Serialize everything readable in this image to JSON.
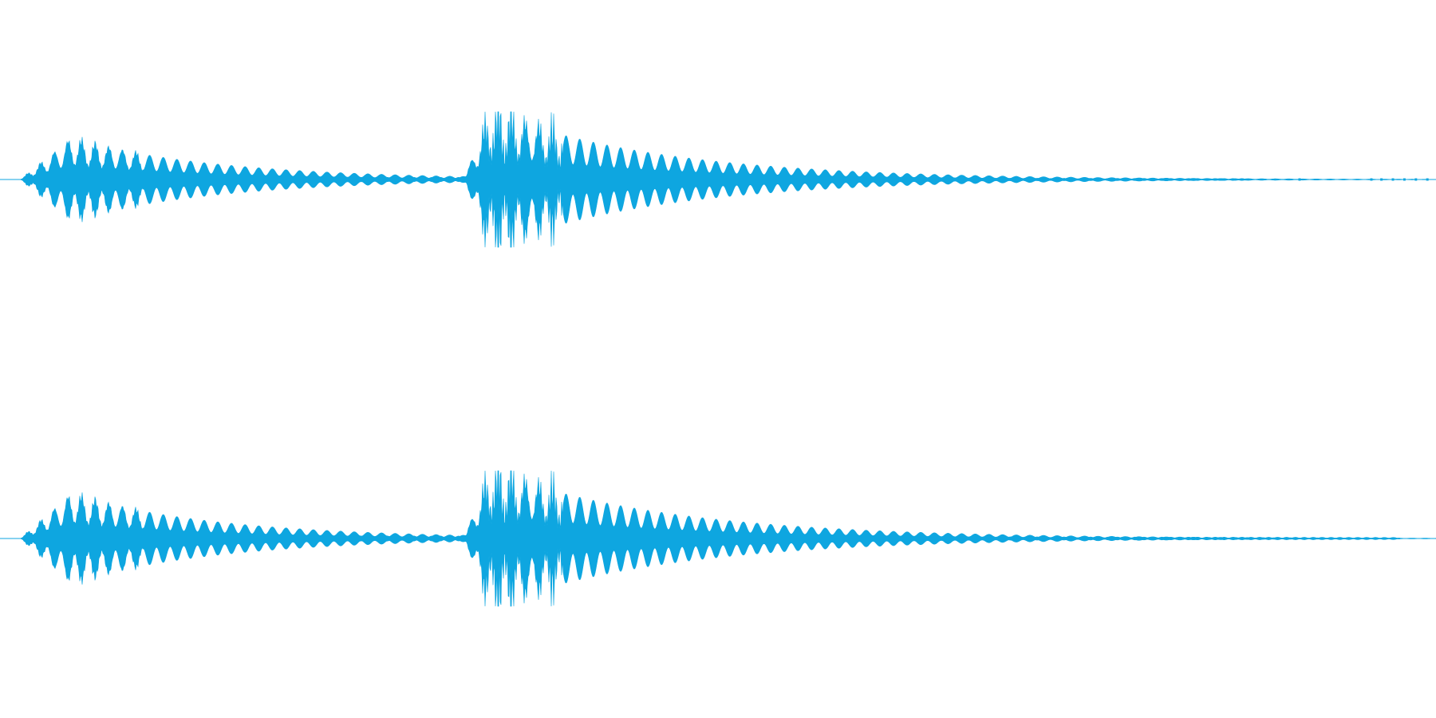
{
  "waveform": {
    "color": "#0ea6e0",
    "background": "#ffffff",
    "channels": [
      {
        "name": "channel-left",
        "events": [
          {
            "onset": 0.014,
            "peak_time": 0.05,
            "peak": 0.6,
            "decay": 0.105,
            "cycle": 0.0095,
            "noise": 0.15
          },
          {
            "onset": 0.323,
            "peak_time": 0.342,
            "peak": 1.0,
            "decay": 0.12,
            "cycle": 0.0095,
            "noise": 0.55
          }
        ],
        "tail_end": 0.87,
        "tail_level": 0.035,
        "late_blips": [
          0.905,
          0.955,
          0.962,
          0.97,
          0.978,
          0.986,
          0.994
        ]
      },
      {
        "name": "channel-right",
        "events": [
          {
            "onset": 0.014,
            "peak_time": 0.05,
            "peak": 0.65,
            "decay": 0.105,
            "cycle": 0.0095,
            "noise": 0.15
          },
          {
            "onset": 0.323,
            "peak_time": 0.342,
            "peak": 1.0,
            "decay": 0.125,
            "cycle": 0.0095,
            "noise": 0.55
          }
        ],
        "tail_end": 0.975,
        "tail_level": 0.04,
        "late_blips": []
      }
    ]
  }
}
